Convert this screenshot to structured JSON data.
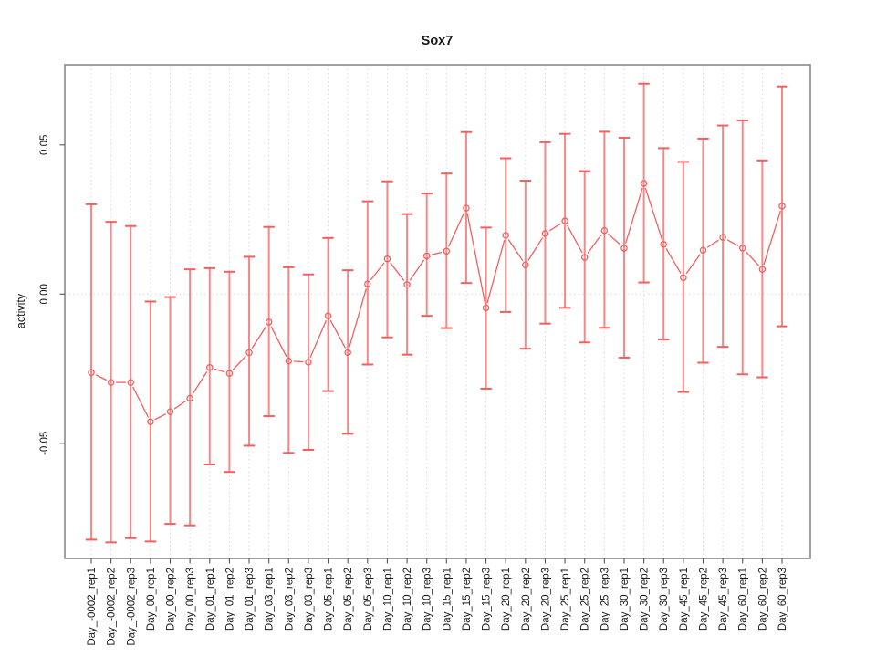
{
  "chart_data": {
    "type": "line",
    "title": "Sox7",
    "xlabel": "",
    "ylabel": "activity",
    "legend": "none",
    "marker": "open-circle",
    "error_bars": true,
    "grid": {
      "vertical": "dotted line at every category",
      "horizontal": "dotted line at y=0 only"
    },
    "ylim": [
      -0.0886,
      0.0768
    ],
    "yticks": [
      -0.05,
      0.0,
      0.05
    ],
    "ytick_labels": [
      "-0.05",
      "0.00",
      "0.05"
    ],
    "categories": [
      "Day_-0002_rep1",
      "Day_-0002_rep2",
      "Day_-0002_rep3",
      "Day_00_rep1",
      "Day_00_rep2",
      "Day_00_rep3",
      "Day_01_rep1",
      "Day_01_rep2",
      "Day_01_rep3",
      "Day_03_rep1",
      "Day_03_rep2",
      "Day_03_rep3",
      "Day_05_rep1",
      "Day_05_rep2",
      "Day_05_rep3",
      "Day_10_rep1",
      "Day_10_rep2",
      "Day_10_rep3",
      "Day_15_rep1",
      "Day_15_rep2",
      "Day_15_rep3",
      "Day_20_rep1",
      "Day_20_rep2",
      "Day_20_rep3",
      "Day_25_rep1",
      "Day_25_rep2",
      "Day_25_rep3",
      "Day_30_rep1",
      "Day_30_rep2",
      "Day_30_rep3",
      "Day_45_rep1",
      "Day_45_rep2",
      "Day_45_rep3",
      "Day_60_rep1",
      "Day_60_rep2",
      "Day_60_rep3"
    ],
    "series": [
      {
        "name": "activity",
        "values": [
          -0.0263,
          -0.0296,
          -0.0296,
          -0.0428,
          -0.0394,
          -0.0349,
          -0.0246,
          -0.0266,
          -0.0196,
          -0.0094,
          -0.0224,
          -0.0228,
          -0.0073,
          -0.0196,
          0.0034,
          0.0118,
          0.0032,
          0.0128,
          0.0144,
          0.0288,
          -0.0046,
          0.0197,
          0.0098,
          0.0203,
          0.0245,
          0.0123,
          0.0213,
          0.0154,
          0.0371,
          0.0167,
          0.0055,
          0.0147,
          0.019,
          0.0154,
          0.0083,
          0.0295
        ],
        "error_high": [
          0.0301,
          0.0242,
          0.0228,
          -0.0025,
          -0.001,
          0.0083,
          0.0087,
          0.0075,
          0.0125,
          0.0225,
          0.009,
          0.0066,
          0.0188,
          0.008,
          0.0311,
          0.0378,
          0.0268,
          0.0337,
          0.0404,
          0.0543,
          0.0223,
          0.0455,
          0.038,
          0.0509,
          0.0537,
          0.0412,
          0.0544,
          0.0524,
          0.0705,
          0.0489,
          0.0443,
          0.0521,
          0.0565,
          0.0582,
          0.0448,
          0.0696
        ],
        "error_low": [
          -0.0823,
          -0.0832,
          -0.0818,
          -0.0829,
          -0.077,
          -0.0775,
          -0.0571,
          -0.0596,
          -0.0508,
          -0.0409,
          -0.0532,
          -0.0522,
          -0.0325,
          -0.0468,
          -0.0236,
          -0.0145,
          -0.0203,
          -0.0073,
          -0.0114,
          0.0037,
          -0.0317,
          -0.006,
          -0.0183,
          -0.0099,
          -0.0046,
          -0.0162,
          -0.0113,
          -0.0213,
          0.0039,
          -0.0152,
          -0.0328,
          -0.023,
          -0.0177,
          -0.0269,
          -0.0279,
          -0.0108
        ]
      }
    ],
    "colors": {
      "series": "#f25f5f",
      "error_bar": "#f58888",
      "grid": "#d9d9d9",
      "frame": "#888888",
      "tick": "#555555",
      "text": "#1a1a1a"
    }
  }
}
